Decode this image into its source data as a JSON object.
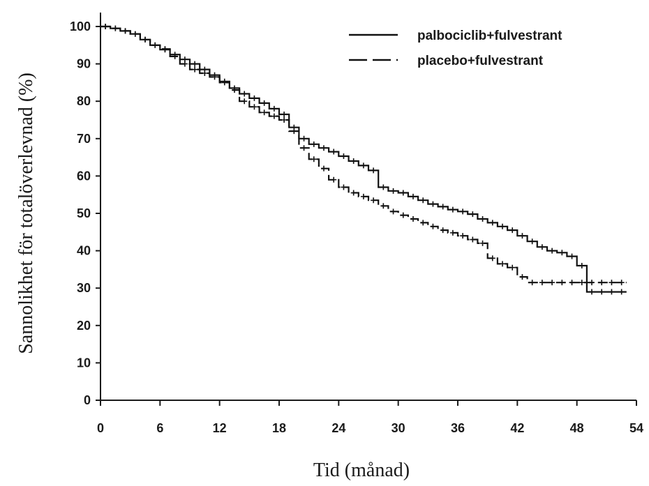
{
  "chart_data": {
    "type": "line",
    "xlabel": "Tid (månad)",
    "ylabel": "Sannolikhet för totalöverlevnad (%)",
    "xlim": [
      0,
      54
    ],
    "ylim": [
      0,
      100
    ],
    "xticks": [
      0,
      6,
      12,
      18,
      24,
      30,
      36,
      42,
      48,
      54
    ],
    "yticks": [
      0,
      10,
      20,
      30,
      40,
      50,
      60,
      70,
      80,
      90,
      100
    ],
    "grid": false,
    "legend_position": "top-right",
    "series": [
      {
        "name": "palbociclib+fulvestrant",
        "style": "solid",
        "step": true,
        "x": [
          0,
          1,
          2,
          3,
          4,
          5,
          6,
          7,
          8,
          9,
          10,
          11,
          12,
          13,
          14,
          15,
          16,
          17,
          18,
          19,
          20,
          21,
          22,
          23,
          24,
          25,
          26,
          27,
          28,
          29,
          30,
          31,
          32,
          33,
          34,
          35,
          36,
          37,
          38,
          39,
          40,
          41,
          42,
          43,
          44,
          45,
          46,
          47,
          48,
          49,
          50,
          51,
          52,
          53
        ],
        "y": [
          100,
          99.5,
          98.8,
          98,
          96.5,
          95,
          93.8,
          92.5,
          91.2,
          90,
          88.5,
          87,
          85.3,
          83.5,
          82,
          80.8,
          79.5,
          78,
          76.5,
          73,
          70,
          68.5,
          67.5,
          66.5,
          65.3,
          64,
          62.8,
          61.5,
          57,
          56,
          55.5,
          54.5,
          53.5,
          52.5,
          51.8,
          51,
          50.5,
          49.8,
          48.5,
          47.5,
          46.5,
          45.5,
          44,
          42.5,
          41,
          40,
          39.5,
          38.5,
          36,
          29,
          29,
          29,
          29,
          29
        ]
      },
      {
        "name": "placebo+fulvestrant",
        "style": "dashed",
        "step": true,
        "x": [
          0,
          1,
          2,
          3,
          4,
          5,
          6,
          7,
          8,
          9,
          10,
          11,
          12,
          13,
          14,
          15,
          16,
          17,
          18,
          19,
          20,
          21,
          22,
          23,
          24,
          25,
          26,
          27,
          28,
          29,
          30,
          31,
          32,
          33,
          34,
          35,
          36,
          37,
          38,
          39,
          40,
          41,
          42,
          43,
          44,
          45,
          46,
          47,
          48,
          49,
          50,
          51,
          52,
          53
        ],
        "y": [
          100,
          99.5,
          98.8,
          98,
          96.5,
          95,
          94,
          92,
          90,
          88.5,
          87.5,
          86.5,
          85,
          83,
          80,
          78.5,
          77,
          76,
          75,
          72,
          67.5,
          64.5,
          62,
          59,
          57,
          55.5,
          54.5,
          53.5,
          52,
          50.5,
          49.5,
          48.5,
          47.5,
          46.5,
          45.5,
          44.8,
          44,
          43,
          42,
          38,
          36.5,
          35.5,
          33,
          31.5,
          31.5,
          31.5,
          31.5,
          31.5,
          31.5,
          31.5,
          31.5,
          31.5,
          31.5,
          31.5
        ]
      }
    ]
  }
}
